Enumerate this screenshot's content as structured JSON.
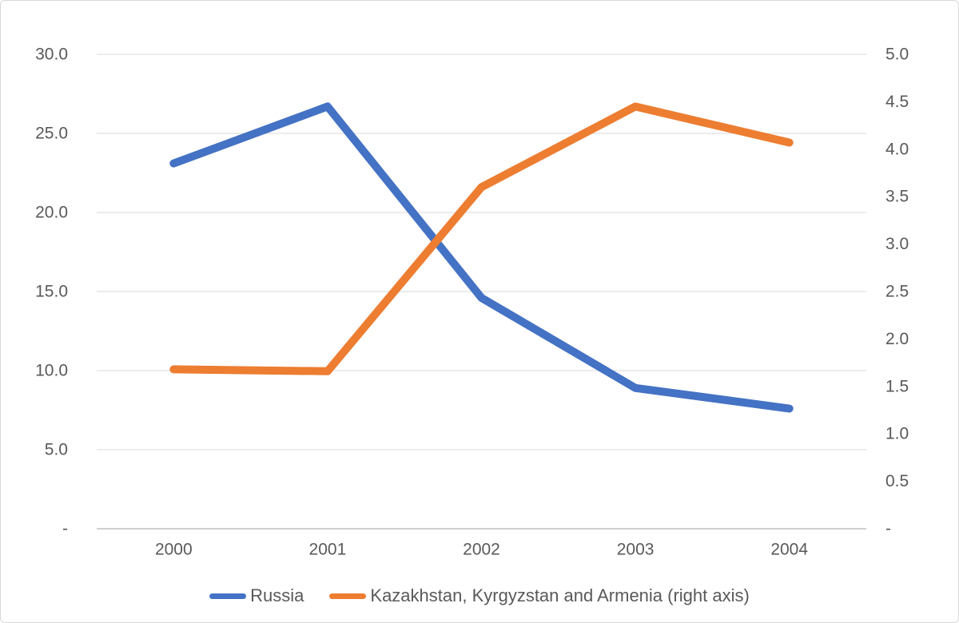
{
  "chart_data": {
    "type": "line",
    "title": "",
    "categories": [
      "2000",
      "2001",
      "2002",
      "2003",
      "2004"
    ],
    "series": [
      {
        "name": "Russia",
        "axis": "left",
        "color": "#4472C4",
        "values": [
          23.1,
          26.7,
          14.6,
          8.9,
          7.6
        ]
      },
      {
        "name": "Kazakhstan, Kyrgyzstan and Armenia (right axis)",
        "axis": "right",
        "color": "#ED7D31",
        "values": [
          1.68,
          1.66,
          3.6,
          4.45,
          4.07
        ]
      }
    ],
    "left_axis": {
      "min": 0,
      "max": 30,
      "step": 5,
      "tick_labels": [
        "-",
        "5.0",
        "10.0",
        "15.0",
        "20.0",
        "25.0",
        "30.0"
      ]
    },
    "right_axis": {
      "min": 0,
      "max": 5,
      "step": 0.5,
      "tick_labels": [
        "-",
        "0.5",
        "1.0",
        "1.5",
        "2.0",
        "2.5",
        "3.0",
        "3.5",
        "4.0",
        "4.5",
        "5.0"
      ]
    },
    "grid": true,
    "legend_position": "bottom"
  },
  "colors": {
    "background": "#FFFFFF",
    "gridline": "#D9D9D9",
    "axis_line": "#BFBFBF",
    "tick_text": "#595959",
    "series_russia": "#4472C4",
    "series_kka": "#ED7D31"
  }
}
